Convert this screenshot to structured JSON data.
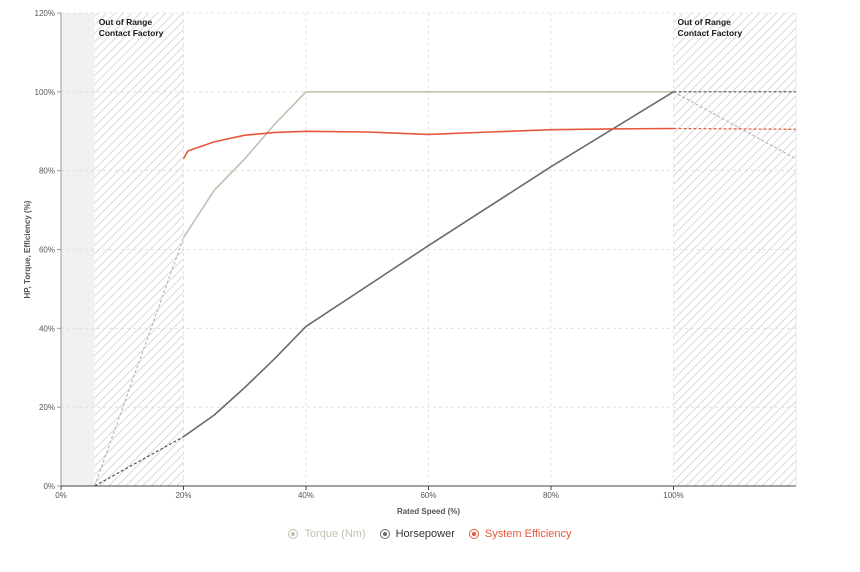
{
  "chart_data": {
    "type": "line",
    "title": "",
    "xlabel": "Rated Speed (%)",
    "ylabel": "HP, Torque, Efficiency (%)",
    "xlim": [
      0,
      120
    ],
    "ylim": [
      0,
      120
    ],
    "x_ticks": [
      "0%",
      "20%",
      "40%",
      "60%",
      "80%",
      "100%"
    ],
    "x_tick_values": [
      0,
      20,
      40,
      60,
      80,
      100
    ],
    "y_ticks": [
      "0%",
      "20%",
      "40%",
      "60%",
      "80%",
      "100%",
      "120%"
    ],
    "y_tick_values": [
      0,
      20,
      40,
      60,
      80,
      100,
      120
    ],
    "grid": true,
    "legend_position": "bottom-center",
    "regions": [
      {
        "x_start": 5.5,
        "x_end": 20,
        "label_line1": "Out of Range",
        "label_line2": "Contact Factory"
      },
      {
        "x_start": 100,
        "x_end": 120,
        "label_line1": "Out of Range",
        "label_line2": "Contact Factory"
      }
    ],
    "shaded_region": {
      "x_start": 0,
      "x_end": 5.5
    },
    "series": [
      {
        "name": "Torque (Nm)",
        "color": "#c5bfb0",
        "solid": [
          [
            20,
            63
          ],
          [
            25,
            75
          ],
          [
            30,
            83
          ],
          [
            35,
            92
          ],
          [
            40,
            100
          ],
          [
            60,
            100
          ],
          [
            80,
            100
          ],
          [
            100,
            100
          ]
        ],
        "dashed_left": [
          [
            5.5,
            0
          ],
          [
            20,
            63
          ]
        ],
        "dashed_right": [
          [
            100,
            100
          ],
          [
            120,
            83
          ]
        ],
        "dashed_color": "#b9b4c6"
      },
      {
        "name": "Horsepower",
        "color": "#6b6b6b",
        "solid": [
          [
            20,
            12.5
          ],
          [
            25,
            18
          ],
          [
            30,
            25
          ],
          [
            35,
            32.5
          ],
          [
            40,
            40.5
          ],
          [
            60,
            61
          ],
          [
            80,
            81
          ],
          [
            100,
            100
          ]
        ],
        "dashed_left": [
          [
            5.5,
            0
          ],
          [
            20,
            12.5
          ]
        ],
        "dashed_right": [
          [
            100,
            100
          ],
          [
            120,
            100
          ]
        ],
        "dashed_color": "#555555"
      },
      {
        "name": "System Efficiency",
        "color": "#e8573a",
        "solid": [
          [
            20,
            83
          ],
          [
            20.7,
            85
          ],
          [
            25,
            87.3
          ],
          [
            30,
            89
          ],
          [
            35,
            89.7
          ],
          [
            40,
            90
          ],
          [
            50,
            89.8
          ],
          [
            60,
            89.2
          ],
          [
            70,
            89.8
          ],
          [
            80,
            90.4
          ],
          [
            90,
            90.6
          ],
          [
            100,
            90.7
          ]
        ],
        "dashed_left": [],
        "dashed_right": [
          [
            100,
            90.7
          ],
          [
            120,
            90.5
          ]
        ],
        "dashed_color": "#e8573a"
      }
    ]
  }
}
